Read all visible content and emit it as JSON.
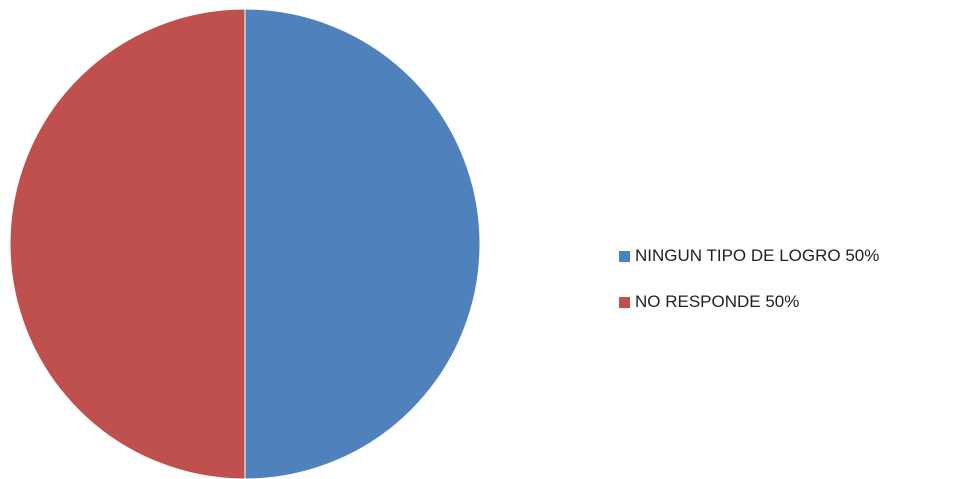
{
  "chart_data": {
    "type": "pie",
    "title": "",
    "categories": [
      "NINGUN TIPO DE LOGRO 50%",
      "NO RESPONDE 50%"
    ],
    "values": [
      50,
      50
    ],
    "colors": [
      "#4F81BD",
      "#C0504D"
    ],
    "legend_position": "right"
  }
}
